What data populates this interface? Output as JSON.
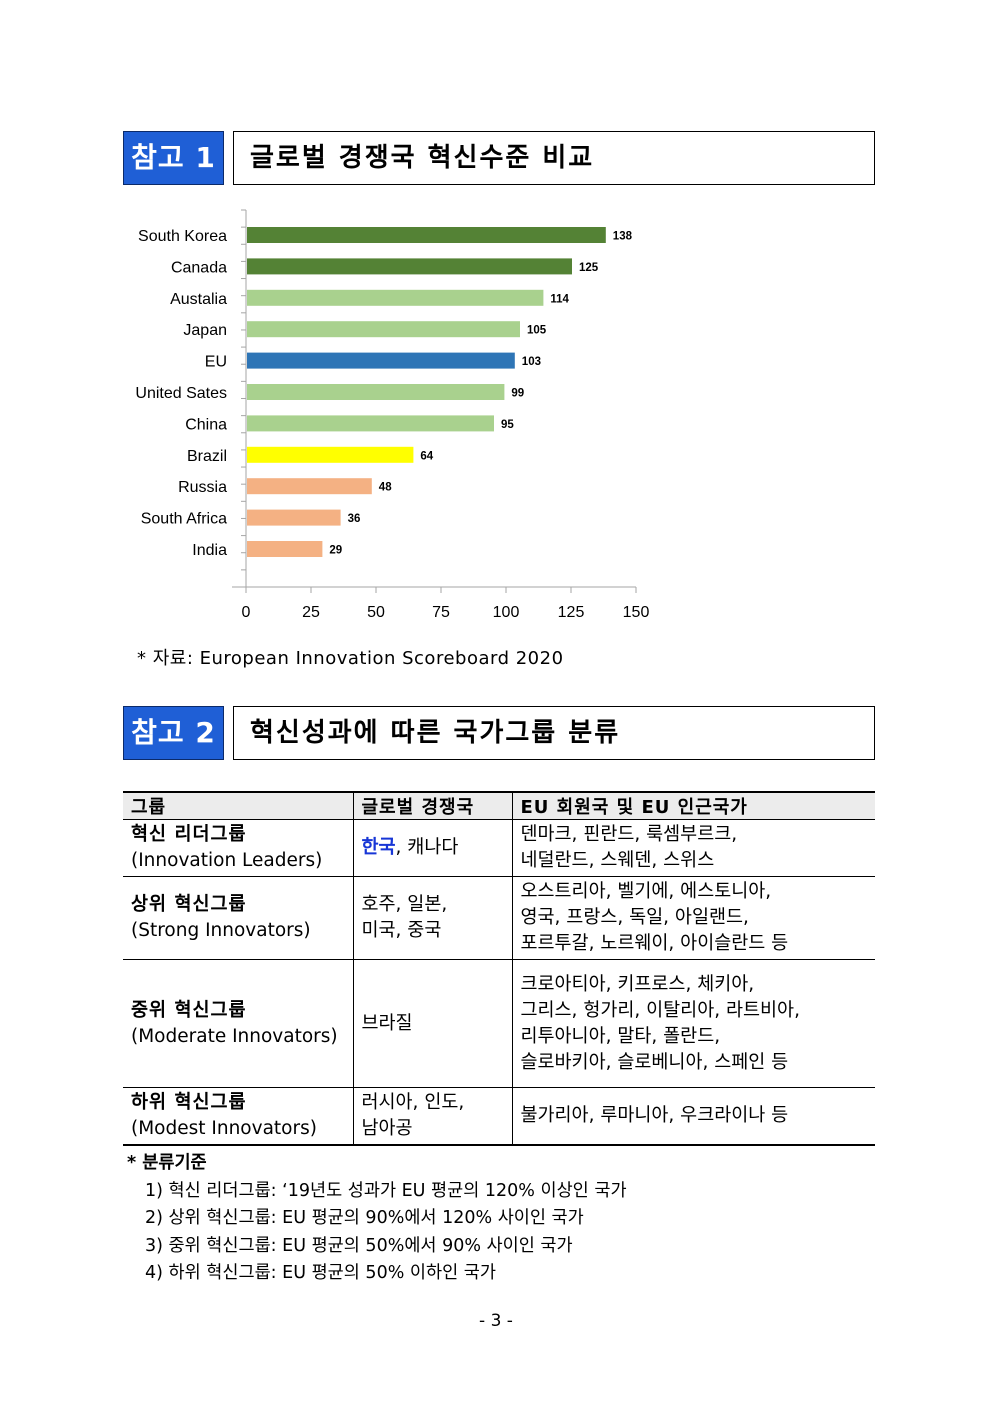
{
  "section1": {
    "badge": "참고 1",
    "title": "글로벌 경쟁국 혁신수준 비교"
  },
  "chart_data": {
    "type": "bar",
    "orientation": "horizontal",
    "categories": [
      "South Korea",
      "Canada",
      "Austalia",
      "Japan",
      "EU",
      "United Sates",
      "China",
      "Brazil",
      "Russia",
      "South Africa",
      "India"
    ],
    "values": [
      138,
      125,
      114,
      105,
      103,
      99,
      95,
      64,
      48,
      36,
      29
    ],
    "colors": [
      "#548235",
      "#548235",
      "#a9d18e",
      "#a9d18e",
      "#2e75b6",
      "#a9d18e",
      "#a9d18e",
      "#ffff00",
      "#f4b183",
      "#f4b183",
      "#f4b183"
    ],
    "xlim": [
      0,
      150
    ],
    "xticks": [
      0,
      25,
      50,
      75,
      100,
      125,
      150
    ],
    "data_labels": true,
    "grid": false
  },
  "chart_source": "* 자료: European Innovation Scoreboard 2020",
  "section2": {
    "badge": "참고 2",
    "title": "혁신성과에 따른 국가그룹 분류"
  },
  "table": {
    "headers": [
      "그룹",
      "글로벌 경쟁국",
      "EU 회원국 및 EU 인근국가"
    ],
    "rows": [
      {
        "group_ko": "혁신 리더그룹",
        "group_en": "(Innovation Leaders)",
        "global_hl": "한국",
        "global": ", 캐나다",
        "eu": [
          "덴마크, 핀란드, 룩셈부르크,",
          "네덜란드, 스웨덴, 스위스"
        ]
      },
      {
        "group_ko": "상위 혁신그룹",
        "group_en": "(Strong Innovators)",
        "global_hl": "",
        "global": "호주, 일본,\n미국, 중국",
        "eu": [
          "오스트리아, 벨기에, 에스토니아,",
          "영국, 프랑스, 독일, 아일랜드,",
          "포르투갈, 노르웨이, 아이슬란드 등"
        ]
      },
      {
        "group_ko": "중위 혁신그룹",
        "group_en": "(Moderate Innovators)",
        "global_hl": "",
        "global": "브라질",
        "eu": [
          "크로아티아, 키프로스, 체키아,",
          "그리스, 헝가리, 이탈리아, 라트비아,",
          "리투아니아, 말타, 폴란드,",
          "슬로바키아, 슬로베니아, 스페인 등"
        ]
      },
      {
        "group_ko": "하위 혁신그룹",
        "group_en": "(Modest Innovators)",
        "global_hl": "",
        "global": "러시아, 인도,\n남아공",
        "eu": [
          "불가리아, 루마니아, 우크라이나 등"
        ]
      }
    ]
  },
  "notes": {
    "title": "* 분류기준",
    "items": [
      "1) 혁신 리더그룹: ‘19년도 성과가 EU 평균의 120% 이상인 국가",
      "2) 상위 혁신그룹: EU 평균의 90%에서 120% 사이인 국가",
      "3) 중위 혁신그룹: EU 평균의 50%에서 90% 사이인 국가",
      "4) 하위 혁신그룹: EU 평균의 50% 이하인 국가"
    ]
  },
  "page_number": "- 3 -"
}
